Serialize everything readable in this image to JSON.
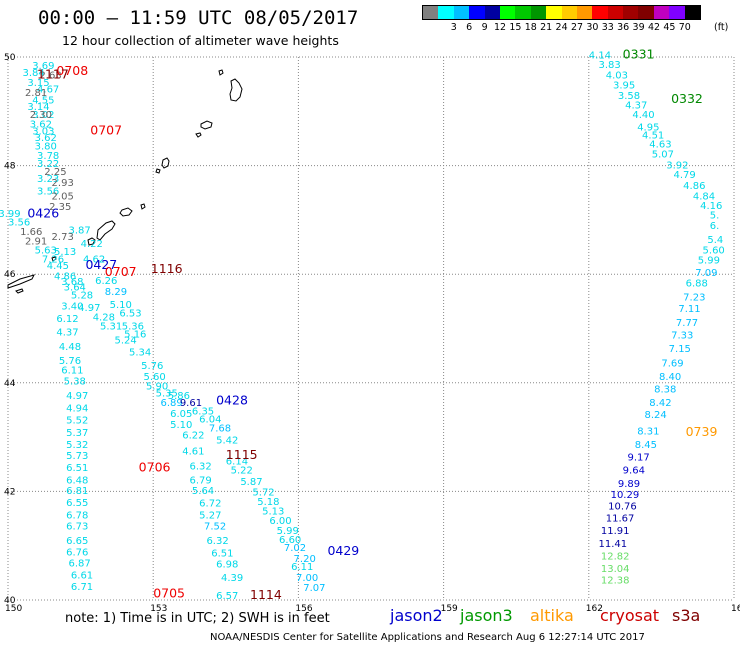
{
  "title": "00:00 – 11:59 UTC 08/05/2017",
  "subtitle": "12 hour collection of altimeter wave heights",
  "legend": {
    "colors": [
      "#808080",
      "#00ffff",
      "#00bfff",
      "#0000ff",
      "#0000a0",
      "#00ff00",
      "#00c800",
      "#009600",
      "#ffff00",
      "#ffcc00",
      "#ff9900",
      "#ff0000",
      "#cc0000",
      "#a00000",
      "#800000",
      "#c000c0",
      "#8000ff",
      "#000000"
    ],
    "labels": [
      "3",
      "6",
      "9",
      "12",
      "15",
      "18",
      "21",
      "24",
      "27",
      "30",
      "33",
      "36",
      "39",
      "42",
      "45",
      "70"
    ],
    "unit": "(ft)"
  },
  "axes": {
    "lon_ticks": [
      "150",
      "153",
      "156",
      "159",
      "162",
      "165"
    ],
    "lat_ticks": [
      "50",
      "48",
      "46",
      "44",
      "42",
      "40"
    ]
  },
  "note": "note:  1) Time is in UTC;  2) SWH is in feet",
  "satellites": [
    {
      "name": "jason2",
      "color": "#0000cc"
    },
    {
      "name": "jason3",
      "color": "#009900"
    },
    {
      "name": "altika",
      "color": "#ff9900"
    },
    {
      "name": "cryosat",
      "color": "#cc0000"
    },
    {
      "name": "s3a",
      "color": "#800000"
    }
  ],
  "footer": "NOAA/NESDIS Center for Satellite Applications and Research     Aug  6 12:27:14 UTC 2017",
  "colors": {
    "track_cyan": "#00d8e8",
    "track_gray": "#606060",
    "jason2": "#0000cc",
    "jason3": "#008800",
    "altika": "#ff9900",
    "cryosat": "#ee0000",
    "s3a": "#800000"
  },
  "passes": [
    {
      "label": "0708",
      "color": "#ee0000",
      "lat": 49.67,
      "lon": 151.0
    },
    {
      "label": "1117",
      "color": "#800000",
      "lat": 49.6,
      "lon": 150.6
    },
    {
      "label": "0707",
      "color": "#ee0000",
      "lat": 48.57,
      "lon": 151.7
    },
    {
      "label": "0426",
      "color": "#0000cc",
      "lat": 47.04,
      "lon": 150.4
    },
    {
      "label": "0427",
      "color": "#0000cc",
      "lat": 46.1,
      "lon": 151.6
    },
    {
      "label": "0707",
      "color": "#ee0000",
      "lat": 45.97,
      "lon": 152.0
    },
    {
      "label": "1116",
      "color": "#800000",
      "lat": 46.02,
      "lon": 152.95
    },
    {
      "label": "0428",
      "color": "#0000cc",
      "lat": 43.6,
      "lon": 154.3
    },
    {
      "label": "1115",
      "color": "#800000",
      "lat": 42.6,
      "lon": 154.5
    },
    {
      "label": "0706",
      "color": "#ee0000",
      "lat": 42.37,
      "lon": 152.7
    },
    {
      "label": "0429",
      "color": "#0000cc",
      "lat": 40.83,
      "lon": 156.6
    },
    {
      "label": "0705",
      "color": "#ee0000",
      "lat": 40.05,
      "lon": 153.0
    },
    {
      "label": "1114",
      "color": "#800000",
      "lat": 40.02,
      "lon": 155.0
    },
    {
      "label": "0331",
      "color": "#008800",
      "lat": 49.97,
      "lon": 162.7
    },
    {
      "label": "0332",
      "color": "#008800",
      "lat": 49.15,
      "lon": 163.7
    },
    {
      "label": "0739",
      "color": "#ff9900",
      "lat": 43.02,
      "lon": 164.0
    }
  ],
  "swh_points": [
    {
      "v": "3.69",
      "lat": 49.78,
      "lon": 150.5,
      "c": "#00d8e8"
    },
    {
      "v": "3.84",
      "lat": 49.65,
      "lon": 150.3,
      "c": "#00d8e8"
    },
    {
      "v": "2.63",
      "lat": 49.6,
      "lon": 150.65,
      "c": "#606060"
    },
    {
      "v": "3.15",
      "lat": 49.47,
      "lon": 150.4,
      "c": "#00d8e8"
    },
    {
      "v": "4.67",
      "lat": 49.35,
      "lon": 150.6,
      "c": "#00d8e8"
    },
    {
      "v": "2.81",
      "lat": 49.28,
      "lon": 150.35,
      "c": "#606060"
    },
    {
      "v": "4.55",
      "lat": 49.14,
      "lon": 150.5,
      "c": "#00d8e8"
    },
    {
      "v": "3.14",
      "lat": 49.02,
      "lon": 150.4,
      "c": "#00d8e8"
    },
    {
      "v": "3.02",
      "lat": 48.88,
      "lon": 150.5,
      "c": "#00d8e8"
    },
    {
      "v": "2.30",
      "lat": 48.88,
      "lon": 150.45,
      "c": "#606060"
    },
    {
      "v": "3.62",
      "lat": 48.7,
      "lon": 150.45,
      "c": "#00d8e8"
    },
    {
      "v": "3.03",
      "lat": 48.57,
      "lon": 150.5,
      "c": "#00d8e8"
    },
    {
      "v": "3.62",
      "lat": 48.45,
      "lon": 150.55,
      "c": "#00d8e8"
    },
    {
      "v": "3.80",
      "lat": 48.3,
      "lon": 150.55,
      "c": "#00d8e8"
    },
    {
      "v": "3.78",
      "lat": 48.12,
      "lon": 150.6,
      "c": "#00d8e8"
    },
    {
      "v": "3.22",
      "lat": 47.97,
      "lon": 150.6,
      "c": "#00d8e8"
    },
    {
      "v": "2.25",
      "lat": 47.83,
      "lon": 150.75,
      "c": "#606060"
    },
    {
      "v": "3.23",
      "lat": 47.7,
      "lon": 150.6,
      "c": "#00d8e8"
    },
    {
      "v": "2.93",
      "lat": 47.62,
      "lon": 150.9,
      "c": "#606060"
    },
    {
      "v": "3.56",
      "lat": 47.47,
      "lon": 150.6,
      "c": "#00d8e8"
    },
    {
      "v": "2.05",
      "lat": 47.38,
      "lon": 150.9,
      "c": "#606060"
    },
    {
      "v": "3.99",
      "lat": 47.05,
      "lon": 149.8,
      "c": "#00d8e8"
    },
    {
      "v": "2.35",
      "lat": 47.18,
      "lon": 150.85,
      "c": "#606060"
    },
    {
      "v": "3.56",
      "lat": 46.9,
      "lon": 150.0,
      "c": "#00d8e8"
    },
    {
      "v": "3.87",
      "lat": 46.75,
      "lon": 151.25,
      "c": "#00d8e8"
    },
    {
      "v": "1.66",
      "lat": 46.72,
      "lon": 150.25,
      "c": "#606060"
    },
    {
      "v": "2.73",
      "lat": 46.63,
      "lon": 150.9,
      "c": "#606060"
    },
    {
      "v": "2.91",
      "lat": 46.55,
      "lon": 150.35,
      "c": "#606060"
    },
    {
      "v": "4.22",
      "lat": 46.5,
      "lon": 151.5,
      "c": "#00d8e8"
    },
    {
      "v": "5.63",
      "lat": 46.38,
      "lon": 150.55,
      "c": "#00d8e8"
    },
    {
      "v": "5.13",
      "lat": 46.35,
      "lon": 150.95,
      "c": "#00d8e8"
    },
    {
      "v": "7.26",
      "lat": 46.22,
      "lon": 150.7,
      "c": "#00d8e8"
    },
    {
      "v": "4.62",
      "lat": 46.22,
      "lon": 151.55,
      "c": "#00d8e8"
    },
    {
      "v": "4.45",
      "lat": 46.1,
      "lon": 150.8,
      "c": "#00d8e8"
    },
    {
      "v": "4.86",
      "lat": 45.9,
      "lon": 150.95,
      "c": "#00d8e8"
    },
    {
      "v": "6.26",
      "lat": 45.82,
      "lon": 151.8,
      "c": "#00d8e8"
    },
    {
      "v": "3.68",
      "lat": 45.8,
      "lon": 151.1,
      "c": "#00d8e8"
    },
    {
      "v": "3.64",
      "lat": 45.7,
      "lon": 151.15,
      "c": "#00d8e8"
    },
    {
      "v": "8.29",
      "lat": 45.62,
      "lon": 152.0,
      "c": "#00bfff"
    },
    {
      "v": "5.28",
      "lat": 45.55,
      "lon": 151.3,
      "c": "#00d8e8"
    },
    {
      "v": "5.10",
      "lat": 45.38,
      "lon": 152.1,
      "c": "#00d8e8"
    },
    {
      "v": "3.40",
      "lat": 45.35,
      "lon": 151.1,
      "c": "#00d8e8"
    },
    {
      "v": "4.97",
      "lat": 45.32,
      "lon": 151.45,
      "c": "#00d8e8"
    },
    {
      "v": "6.53",
      "lat": 45.22,
      "lon": 152.3,
      "c": "#00d8e8"
    },
    {
      "v": "6.12",
      "lat": 45.12,
      "lon": 151.0,
      "c": "#00d8e8"
    },
    {
      "v": "4.28",
      "lat": 45.15,
      "lon": 151.75,
      "c": "#00d8e8"
    },
    {
      "v": "5.36",
      "lat": 44.98,
      "lon": 152.35,
      "c": "#00d8e8"
    },
    {
      "v": "5.31",
      "lat": 44.98,
      "lon": 151.9,
      "c": "#00d8e8"
    },
    {
      "v": "4.37",
      "lat": 44.87,
      "lon": 151.0,
      "c": "#00d8e8"
    },
    {
      "v": "5.16",
      "lat": 44.83,
      "lon": 152.4,
      "c": "#00d8e8"
    },
    {
      "v": "5.24",
      "lat": 44.72,
      "lon": 152.2,
      "c": "#00d8e8"
    },
    {
      "v": "4.48",
      "lat": 44.6,
      "lon": 151.05,
      "c": "#00d8e8"
    },
    {
      "v": "5.34",
      "lat": 44.5,
      "lon": 152.5,
      "c": "#00d8e8"
    },
    {
      "v": "5.76",
      "lat": 44.35,
      "lon": 151.05,
      "c": "#00d8e8"
    },
    {
      "v": "5.76",
      "lat": 44.25,
      "lon": 152.75,
      "c": "#00d8e8"
    },
    {
      "v": "6.11",
      "lat": 44.17,
      "lon": 151.1,
      "c": "#00d8e8"
    },
    {
      "v": "5.60",
      "lat": 44.05,
      "lon": 152.8,
      "c": "#00d8e8"
    },
    {
      "v": "5.38",
      "lat": 43.97,
      "lon": 151.15,
      "c": "#00d8e8"
    },
    {
      "v": "5.90",
      "lat": 43.88,
      "lon": 152.85,
      "c": "#00d8e8"
    },
    {
      "v": "5.35",
      "lat": 43.75,
      "lon": 153.05,
      "c": "#00d8e8"
    },
    {
      "v": "5.86",
      "lat": 43.7,
      "lon": 153.3,
      "c": "#00d8e8"
    },
    {
      "v": "4.97",
      "lat": 43.7,
      "lon": 151.2,
      "c": "#00d8e8"
    },
    {
      "v": "6.89",
      "lat": 43.57,
      "lon": 153.15,
      "c": "#00bfff"
    },
    {
      "v": "9.61",
      "lat": 43.57,
      "lon": 153.55,
      "c": "#0000a0"
    },
    {
      "v": "4.94",
      "lat": 43.47,
      "lon": 151.2,
      "c": "#00d8e8"
    },
    {
      "v": "6.35",
      "lat": 43.42,
      "lon": 153.8,
      "c": "#00d8e8"
    },
    {
      "v": "6.05",
      "lat": 43.37,
      "lon": 153.35,
      "c": "#00d8e8"
    },
    {
      "v": "6.04",
      "lat": 43.27,
      "lon": 153.95,
      "c": "#00d8e8"
    },
    {
      "v": "5.52",
      "lat": 43.25,
      "lon": 151.2,
      "c": "#00d8e8"
    },
    {
      "v": "5.10",
      "lat": 43.17,
      "lon": 153.35,
      "c": "#00d8e8"
    },
    {
      "v": "7.68",
      "lat": 43.1,
      "lon": 154.15,
      "c": "#00bfff"
    },
    {
      "v": "5.37",
      "lat": 43.02,
      "lon": 151.2,
      "c": "#00d8e8"
    },
    {
      "v": "6.22",
      "lat": 42.97,
      "lon": 153.6,
      "c": "#00d8e8"
    },
    {
      "v": "5.42",
      "lat": 42.88,
      "lon": 154.3,
      "c": "#00d8e8"
    },
    {
      "v": "5.32",
      "lat": 42.8,
      "lon": 151.2,
      "c": "#00d8e8"
    },
    {
      "v": "4.61",
      "lat": 42.68,
      "lon": 153.6,
      "c": "#00d8e8"
    },
    {
      "v": "5.73",
      "lat": 42.6,
      "lon": 151.2,
      "c": "#00d8e8"
    },
    {
      "v": "6.14",
      "lat": 42.5,
      "lon": 154.5,
      "c": "#00d8e8"
    },
    {
      "v": "6.32",
      "lat": 42.4,
      "lon": 153.75,
      "c": "#00d8e8"
    },
    {
      "v": "6.51",
      "lat": 42.38,
      "lon": 151.2,
      "c": "#00d8e8"
    },
    {
      "v": "5.22",
      "lat": 42.33,
      "lon": 154.6,
      "c": "#00d8e8"
    },
    {
      "v": "6.79",
      "lat": 42.15,
      "lon": 153.75,
      "c": "#00d8e8"
    },
    {
      "v": "6.48",
      "lat": 42.15,
      "lon": 151.2,
      "c": "#00d8e8"
    },
    {
      "v": "5.87",
      "lat": 42.12,
      "lon": 154.8,
      "c": "#00d8e8"
    },
    {
      "v": "6.81",
      "lat": 41.95,
      "lon": 151.2,
      "c": "#00d8e8"
    },
    {
      "v": "5.72",
      "lat": 41.92,
      "lon": 155.05,
      "c": "#00d8e8"
    },
    {
      "v": "5.64",
      "lat": 41.95,
      "lon": 153.8,
      "c": "#00d8e8"
    },
    {
      "v": "5.18",
      "lat": 41.75,
      "lon": 155.15,
      "c": "#00d8e8"
    },
    {
      "v": "6.55",
      "lat": 41.73,
      "lon": 151.2,
      "c": "#00d8e8"
    },
    {
      "v": "6.72",
      "lat": 41.72,
      "lon": 153.95,
      "c": "#00d8e8"
    },
    {
      "v": "5.13",
      "lat": 41.57,
      "lon": 155.25,
      "c": "#00d8e8"
    },
    {
      "v": "6.78",
      "lat": 41.5,
      "lon": 151.2,
      "c": "#00d8e8"
    },
    {
      "v": "5.27",
      "lat": 41.5,
      "lon": 153.95,
      "c": "#00d8e8"
    },
    {
      "v": "6.00",
      "lat": 41.4,
      "lon": 155.4,
      "c": "#00d8e8"
    },
    {
      "v": "6.73",
      "lat": 41.3,
      "lon": 151.2,
      "c": "#00d8e8"
    },
    {
      "v": "7.52",
      "lat": 41.3,
      "lon": 154.05,
      "c": "#00bfff"
    },
    {
      "v": "5.99",
      "lat": 41.22,
      "lon": 155.55,
      "c": "#00d8e8"
    },
    {
      "v": "6.60",
      "lat": 41.05,
      "lon": 155.6,
      "c": "#00d8e8"
    },
    {
      "v": "6.65",
      "lat": 41.03,
      "lon": 151.2,
      "c": "#00d8e8"
    },
    {
      "v": "6.32",
      "lat": 41.03,
      "lon": 154.1,
      "c": "#00d8e8"
    },
    {
      "v": "7.02",
      "lat": 40.9,
      "lon": 155.7,
      "c": "#00bfff"
    },
    {
      "v": "6.76",
      "lat": 40.82,
      "lon": 151.2,
      "c": "#00d8e8"
    },
    {
      "v": "6.51",
      "lat": 40.8,
      "lon": 154.2,
      "c": "#00d8e8"
    },
    {
      "v": "7.20",
      "lat": 40.7,
      "lon": 155.9,
      "c": "#00bfff"
    },
    {
      "v": "6.87",
      "lat": 40.62,
      "lon": 151.25,
      "c": "#00d8e8"
    },
    {
      "v": "6.98",
      "lat": 40.6,
      "lon": 154.3,
      "c": "#00d8e8"
    },
    {
      "v": "6.11",
      "lat": 40.55,
      "lon": 155.85,
      "c": "#00d8e8"
    },
    {
      "v": "6.61",
      "lat": 40.4,
      "lon": 151.3,
      "c": "#00d8e8"
    },
    {
      "v": "4.39",
      "lat": 40.35,
      "lon": 154.4,
      "c": "#00d8e8"
    },
    {
      "v": "7.00",
      "lat": 40.35,
      "lon": 155.95,
      "c": "#00bfff"
    },
    {
      "v": "6.71",
      "lat": 40.18,
      "lon": 151.3,
      "c": "#00d8e8"
    },
    {
      "v": "6.57",
      "lat": 40.02,
      "lon": 154.3,
      "c": "#00d8e8"
    },
    {
      "v": "7.07",
      "lat": 40.17,
      "lon": 156.1,
      "c": "#00bfff"
    },
    {
      "v": "4.14",
      "lat": 49.97,
      "lon": 162.0,
      "c": "#00d8e8"
    },
    {
      "v": "3.83",
      "lat": 49.8,
      "lon": 162.2,
      "c": "#00d8e8"
    },
    {
      "v": "4.03",
      "lat": 49.6,
      "lon": 162.35,
      "c": "#00d8e8"
    },
    {
      "v": "3.95",
      "lat": 49.42,
      "lon": 162.5,
      "c": "#00d8e8"
    },
    {
      "v": "3.58",
      "lat": 49.23,
      "lon": 162.6,
      "c": "#00d8e8"
    },
    {
      "v": "4.37",
      "lat": 49.05,
      "lon": 162.75,
      "c": "#00d8e8"
    },
    {
      "v": "4.40",
      "lat": 48.88,
      "lon": 162.9,
      "c": "#00d8e8"
    },
    {
      "v": "4.95",
      "lat": 48.65,
      "lon": 163.0,
      "c": "#00d8e8"
    },
    {
      "v": "4.51",
      "lat": 48.5,
      "lon": 163.1,
      "c": "#00d8e8"
    },
    {
      "v": "4.63",
      "lat": 48.33,
      "lon": 163.25,
      "c": "#00d8e8"
    },
    {
      "v": "5.07",
      "lat": 48.15,
      "lon": 163.3,
      "c": "#00d8e8"
    },
    {
      "v": "3.92",
      "lat": 47.95,
      "lon": 163.6,
      "c": "#00d8e8"
    },
    {
      "v": "4.79",
      "lat": 47.77,
      "lon": 163.75,
      "c": "#00d8e8"
    },
    {
      "v": "4.86",
      "lat": 47.57,
      "lon": 163.95,
      "c": "#00d8e8"
    },
    {
      "v": "4.84",
      "lat": 47.38,
      "lon": 164.15,
      "c": "#00d8e8"
    },
    {
      "v": "4.16",
      "lat": 47.2,
      "lon": 164.3,
      "c": "#00d8e8"
    },
    {
      "v": "5.",
      "lat": 47.03,
      "lon": 164.5,
      "c": "#00d8e8"
    },
    {
      "v": "6.",
      "lat": 46.83,
      "lon": 164.5,
      "c": "#00d8e8"
    },
    {
      "v": "5.4",
      "lat": 46.57,
      "lon": 164.45,
      "c": "#00d8e8"
    },
    {
      "v": "5.60",
      "lat": 46.38,
      "lon": 164.35,
      "c": "#00d8e8"
    },
    {
      "v": "5.99",
      "lat": 46.2,
      "lon": 164.25,
      "c": "#00d8e8"
    },
    {
      "v": "7.09",
      "lat": 45.97,
      "lon": 164.2,
      "c": "#00bfff"
    },
    {
      "v": "6.88",
      "lat": 45.77,
      "lon": 164.0,
      "c": "#00d8e8"
    },
    {
      "v": "7.23",
      "lat": 45.52,
      "lon": 163.95,
      "c": "#00bfff"
    },
    {
      "v": "7.11",
      "lat": 45.3,
      "lon": 163.85,
      "c": "#00bfff"
    },
    {
      "v": "7.77",
      "lat": 45.05,
      "lon": 163.8,
      "c": "#00bfff"
    },
    {
      "v": "7.33",
      "lat": 44.82,
      "lon": 163.7,
      "c": "#00bfff"
    },
    {
      "v": "7.15",
      "lat": 44.57,
      "lon": 163.65,
      "c": "#00bfff"
    },
    {
      "v": "7.69",
      "lat": 44.3,
      "lon": 163.5,
      "c": "#00bfff"
    },
    {
      "v": "8.40",
      "lat": 44.05,
      "lon": 163.45,
      "c": "#00bfff"
    },
    {
      "v": "8.38",
      "lat": 43.82,
      "lon": 163.35,
      "c": "#00bfff"
    },
    {
      "v": "8.42",
      "lat": 43.57,
      "lon": 163.25,
      "c": "#00bfff"
    },
    {
      "v": "8.24",
      "lat": 43.35,
      "lon": 163.15,
      "c": "#00bfff"
    },
    {
      "v": "8.31",
      "lat": 43.05,
      "lon": 163.0,
      "c": "#00bfff"
    },
    {
      "v": "8.45",
      "lat": 42.8,
      "lon": 162.95,
      "c": "#00bfff"
    },
    {
      "v": "9.17",
      "lat": 42.57,
      "lon": 162.8,
      "c": "#0000cc"
    },
    {
      "v": "9.64",
      "lat": 42.33,
      "lon": 162.7,
      "c": "#0000cc"
    },
    {
      "v": "9.89",
      "lat": 42.08,
      "lon": 162.6,
      "c": "#0000cc"
    },
    {
      "v": "10.29",
      "lat": 41.88,
      "lon": 162.45,
      "c": "#0000cc"
    },
    {
      "v": "10.76",
      "lat": 41.67,
      "lon": 162.4,
      "c": "#0000a0"
    },
    {
      "v": "11.67",
      "lat": 41.45,
      "lon": 162.35,
      "c": "#0000a0"
    },
    {
      "v": "11.91",
      "lat": 41.22,
      "lon": 162.25,
      "c": "#0000a0"
    },
    {
      "v": "11.41",
      "lat": 40.98,
      "lon": 162.2,
      "c": "#0000a0"
    },
    {
      "v": "12.82",
      "lat": 40.75,
      "lon": 162.25,
      "c": "#66dd66"
    },
    {
      "v": "13.04",
      "lat": 40.52,
      "lon": 162.25,
      "c": "#66dd66"
    },
    {
      "v": "12.38",
      "lat": 40.3,
      "lon": 162.25,
      "c": "#66dd66"
    }
  ]
}
